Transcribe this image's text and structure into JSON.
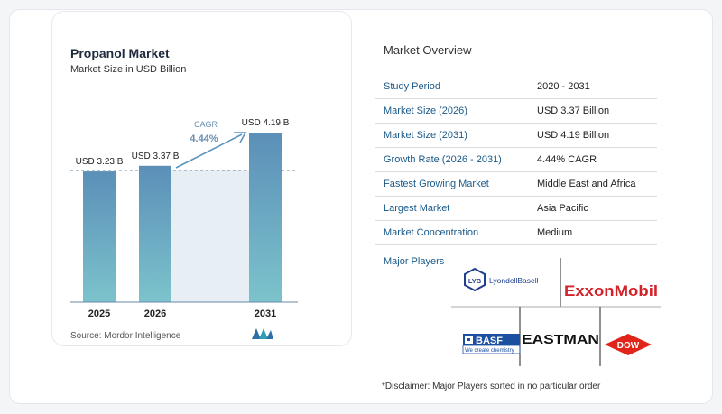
{
  "chart": {
    "title": "Propanol Market",
    "subtitle": "Market Size in USD Billion",
    "source": "Source:  Mordor Intelligence",
    "cagr_label": "CAGR",
    "cagr_value": "4.44%"
  },
  "chart_data": {
    "type": "bar",
    "title": "Propanol Market",
    "subtitle": "Market Size in USD Billion",
    "categories": [
      "2025",
      "2026",
      "2031"
    ],
    "values": [
      3.23,
      3.37,
      4.19
    ],
    "value_labels": [
      "USD 3.23 B",
      "USD 3.37 B",
      "USD 4.19 B"
    ],
    "unit": "USD Billion",
    "annotation": {
      "label": "CAGR",
      "value": "4.44%",
      "from": "2026",
      "to": "2031"
    },
    "ylim": [
      0,
      4.19
    ],
    "grid": false
  },
  "overview": {
    "title": "Market Overview",
    "rows": [
      {
        "label": "Study Period",
        "value": "2020 - 2031"
      },
      {
        "label": "Market Size (2026)",
        "value": "USD 3.37 Billion"
      },
      {
        "label": "Market Size (2031)",
        "value": "USD 4.19 Billion"
      },
      {
        "label": "Growth Rate (2026 - 2031)",
        "value": "4.44% CAGR"
      },
      {
        "label": "Fastest Growing Market",
        "value": "Middle East and Africa"
      },
      {
        "label": "Largest Market",
        "value": "Asia Pacific"
      },
      {
        "label": "Market Concentration",
        "value": "Medium"
      }
    ]
  },
  "players": {
    "title": "Major Players",
    "lyondell": "LyondellBasell",
    "lyb": "LYB",
    "exxon": "ExxonMobil",
    "basf": "BASF",
    "basf_tagline": "We create chemistry",
    "eastman": "EASTMAN",
    "dow": "DOW"
  },
  "disclaimer": "*Disclaimer: Major Players sorted in no particular order",
  "colors": {
    "bar_top": "#5b8fb8",
    "bar_bottom": "#7cc3cc",
    "accent": "#1a5a8a",
    "arrow": "#5b94bf"
  }
}
